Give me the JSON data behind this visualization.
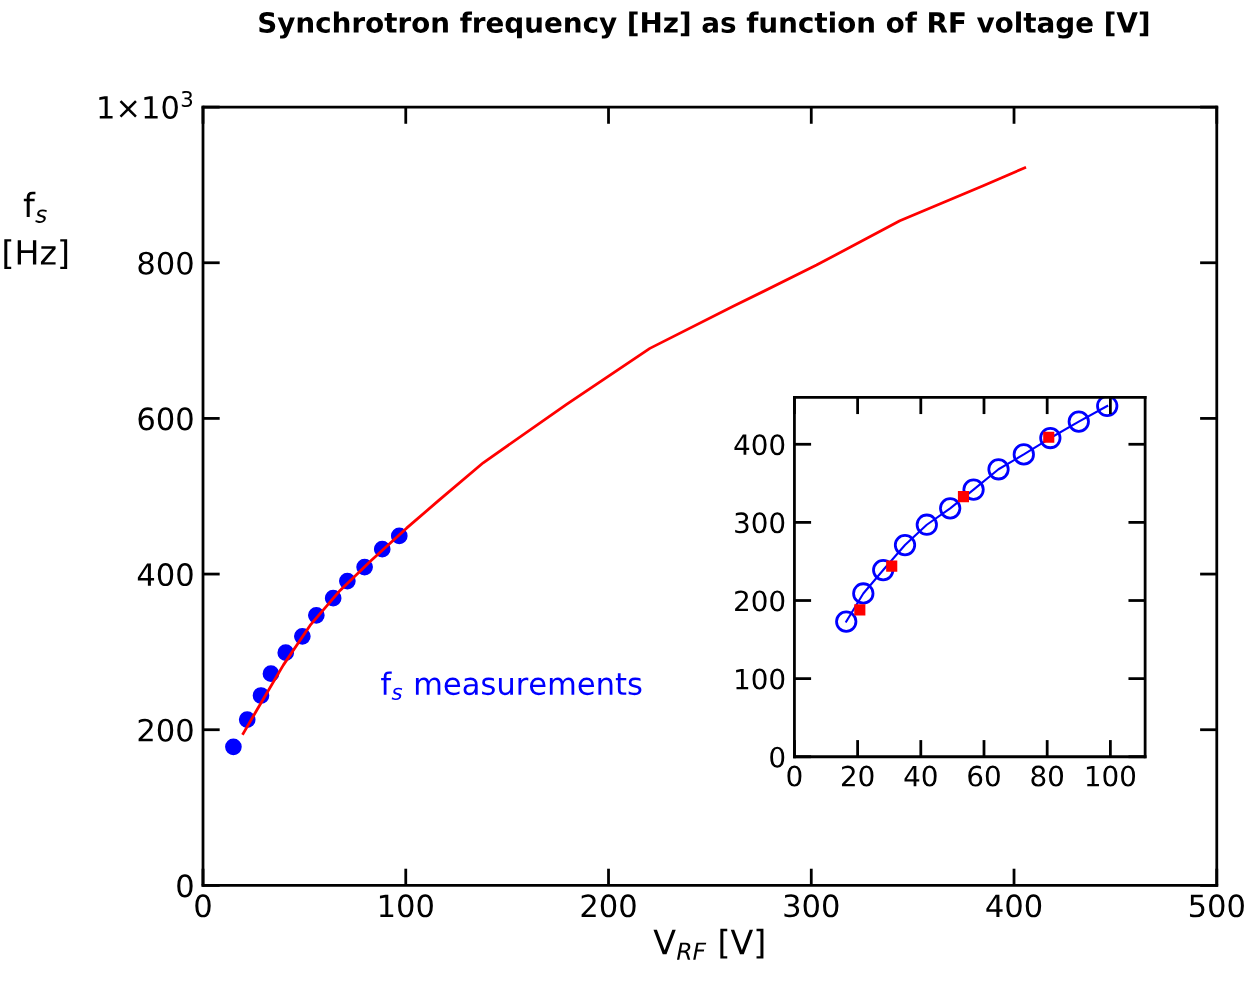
{
  "chart_data": [
    {
      "type": "scatter",
      "title": "Synchrotron frequency [Hz] as function of RF voltage [V]",
      "xlabel": "V$_{RF}$ [V]",
      "ylabel": "f$_{s}$\n[Hz]",
      "xlim": [
        0,
        500
      ],
      "xticks": [
        0,
        100,
        200,
        300,
        400,
        500
      ],
      "ylim": [
        0,
        1000
      ],
      "yticks": [
        0,
        200,
        400,
        600,
        800,
        {
          "value": 1000,
          "label": "1×10$^{3}$"
        }
      ],
      "grid": false,
      "legend": false,
      "series": [
        {
          "name": "f$_{s}$ measurements",
          "color": "#0000ff",
          "marker": "circle",
          "x": [
            15.0,
            21.8,
            28.6,
            33.5,
            40.8,
            49.0,
            55.9,
            64.2,
            71.2,
            79.7,
            88.4,
            96.8
          ],
          "values": [
            178,
            213,
            244,
            272,
            299,
            320,
            347,
            369,
            391,
            409,
            432,
            449
          ]
        },
        {
          "type": "line",
          "color": "#ff0000",
          "line_style": "solid",
          "x": [
            19.8,
            26.5,
            39.6,
            52.8,
            67.6,
            83.2,
            100.4,
            116,
            138.2,
            179.3,
            220.4,
            261.5,
            302.6,
            343.7,
            384.8,
            405.3
          ],
          "values": [
            195,
            225,
            283,
            334,
            379,
            418,
            459,
            494,
            543,
            618,
            690,
            744,
            797,
            854,
            899,
            922
          ]
        }
      ]
    },
    {
      "type": "line",
      "xlim": [
        0,
        111
      ],
      "xticks": [
        0,
        20,
        40,
        60,
        80,
        100
      ],
      "ylim": [
        0,
        460
      ],
      "yticks": [
        0,
        100,
        200,
        300,
        400
      ],
      "grid": false,
      "legend": false,
      "series": [
        {
          "color": "#0000ff",
          "marker": "circle",
          "line_style": "solid",
          "x": [
            16.4,
            21.8,
            28.1,
            35,
            41.9,
            49.3,
            56.7,
            64.6,
            72.6,
            81,
            90,
            99
          ],
          "values": [
            173,
            209,
            239,
            271,
            297,
            318,
            342,
            368,
            387,
            408,
            429,
            449
          ]
        },
        {
          "type": "scatter",
          "color": "#ff0000",
          "marker": "square",
          "x": [
            20.7,
            30.8,
            53.5,
            80.5
          ],
          "values": [
            188,
            244,
            333,
            409
          ]
        }
      ]
    }
  ]
}
